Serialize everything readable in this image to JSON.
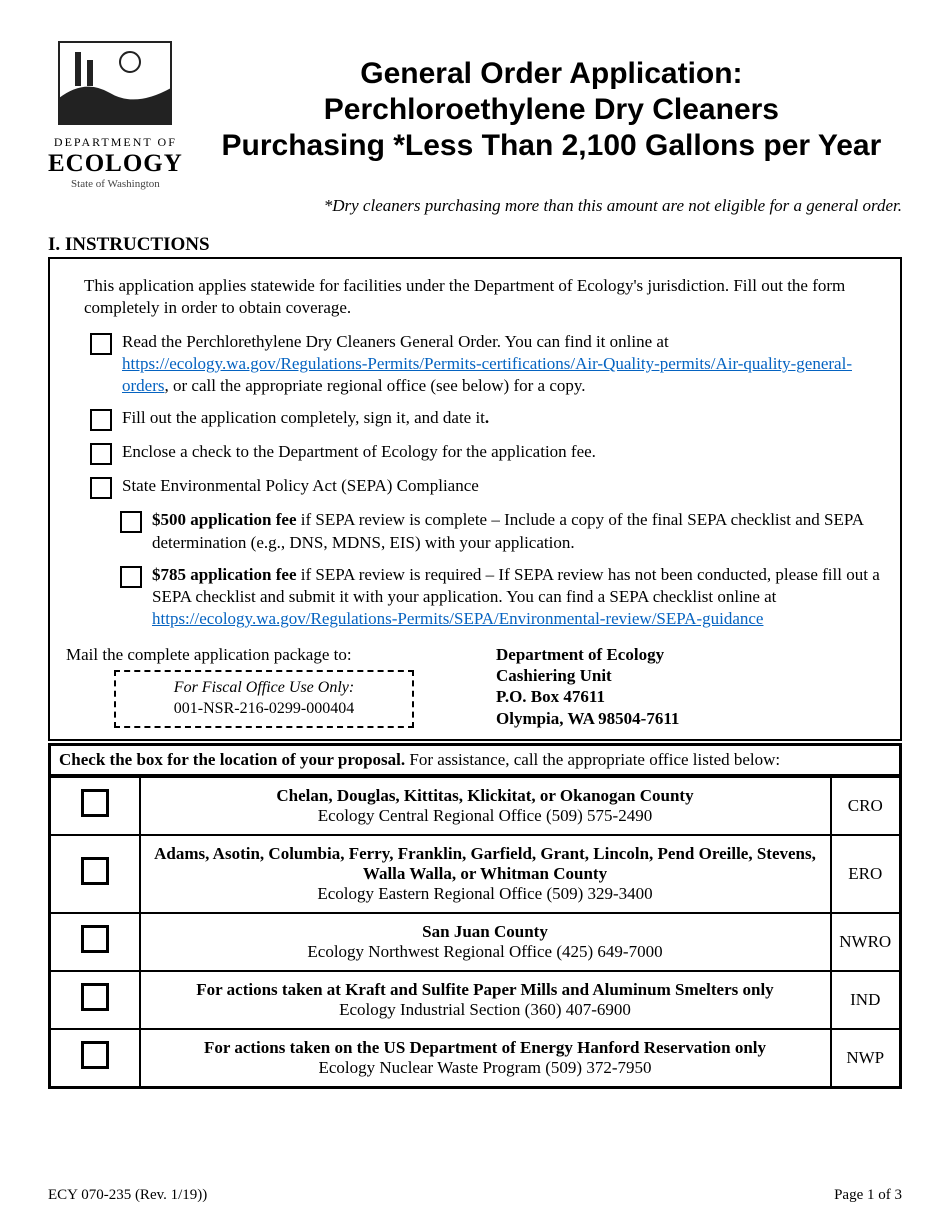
{
  "logo": {
    "dept_line": "DEPARTMENT OF",
    "ecology": "ECOLOGY",
    "state": "State of Washington"
  },
  "title": {
    "line1": "General Order Application:",
    "line2": "Perchloroethylene Dry Cleaners",
    "line3": "Purchasing *Less Than 2,100 Gallons per Year"
  },
  "subtitle": "*Dry cleaners purchasing more than this amount are not eligible for a general order.",
  "section_heading": "I. INSTRUCTIONS",
  "intro": "This application applies statewide for facilities under the Department of Ecology's jurisdiction.  Fill out the form completely in order to obtain coverage.",
  "steps": {
    "read": {
      "pre": "Read the Perchlorethylene Dry Cleaners General Order.  You can find it online at ",
      "link": "https://ecology.wa.gov/Regulations-Permits/Permits-certifications/Air-Quality-permits/Air-quality-general-orders",
      "post": ", or call the appropriate regional office (see below) for a copy."
    },
    "fill": "Fill out the application completely, sign it, and date it",
    "fill_period": ".",
    "enclose": "Enclose a check to the Department of Ecology for the application fee.",
    "sepa": "State Environmental Policy Act (SEPA) Compliance",
    "fee500": {
      "bold": "$500 application fee",
      "rest": " if SEPA review is complete – Include a copy of the final SEPA checklist and SEPA determination (e.g., DNS, MDNS, EIS) with your application."
    },
    "fee785": {
      "bold": "$785 application fee",
      "rest": " if SEPA review is required – If SEPA review has not been conducted, please fill out a SEPA checklist and submit it with your application. You can find a SEPA checklist online at ",
      "link": "https://ecology.wa.gov/Regulations-Permits/SEPA/Environmental-review/SEPA-guidance"
    }
  },
  "mail": {
    "intro": "Mail the complete application package to:",
    "fiscal_title": "For Fiscal Office Use Only:",
    "fiscal_code": "001-NSR-216-0299-000404",
    "addr1": "Department of Ecology",
    "addr2": "Cashiering Unit",
    "addr3": "P.O. Box 47611",
    "addr4": "Olympia, WA 98504-7611"
  },
  "loc_heading_bold": "Check the box for the location of your proposal.",
  "loc_heading_rest": "   For assistance, call the appropriate office listed below:",
  "locations": [
    {
      "title": "Chelan, Douglas, Kittitas, Klickitat, or Okanogan County",
      "office": "Ecology Central Regional Office (509) 575-2490",
      "code": "CRO"
    },
    {
      "title": "Adams, Asotin, Columbia, Ferry, Franklin, Garfield, Grant, Lincoln, Pend Oreille, Stevens, Walla Walla, or Whitman County",
      "office": "Ecology Eastern Regional Office (509) 329-3400",
      "code": "ERO"
    },
    {
      "title": "San Juan County",
      "office": "Ecology Northwest Regional Office (425) 649-7000",
      "code": "NWRO"
    },
    {
      "title": "For actions taken at Kraft and Sulfite Paper Mills and Aluminum Smelters only",
      "office": "Ecology Industrial Section (360) 407-6900",
      "code": "IND"
    },
    {
      "title": "For actions taken on the US Department of Energy Hanford Reservation only",
      "office": "Ecology Nuclear Waste Program (509) 372-7950",
      "code": "NWP"
    }
  ],
  "footer_left": "ECY 070-235 (Rev. 1/19))",
  "footer_right": "Page 1 of 3",
  "colors": {
    "link": "#0563c1",
    "text": "#000000",
    "bg": "#ffffff"
  }
}
